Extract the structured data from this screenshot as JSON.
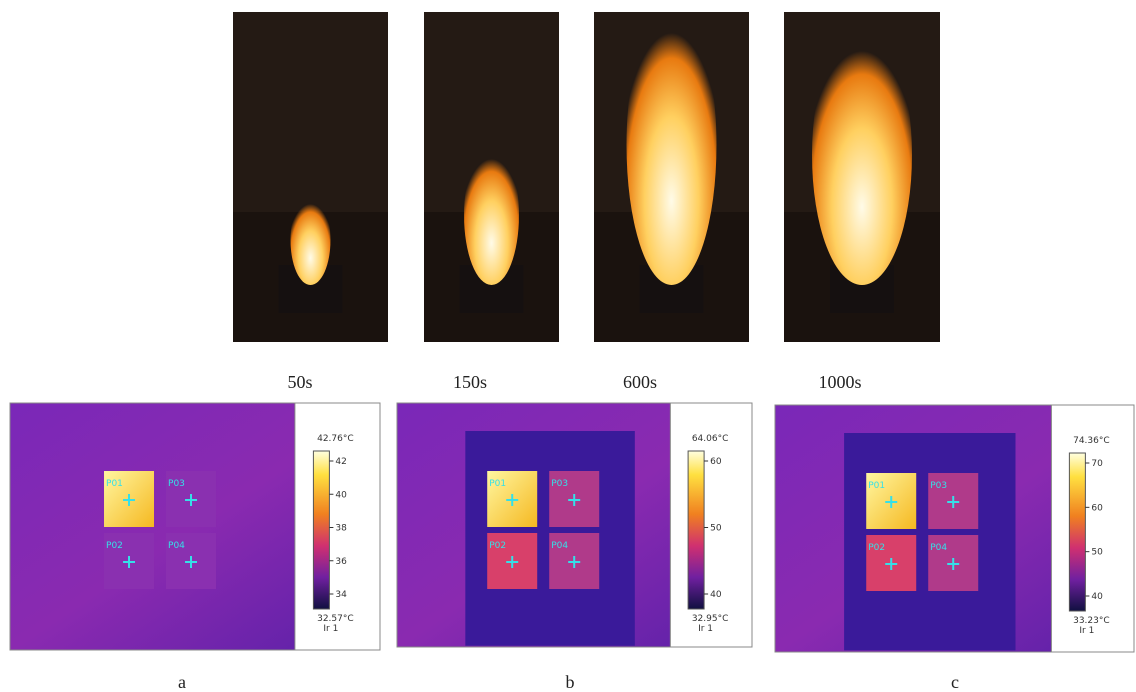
{
  "photos": [
    {
      "time": "50s"
    },
    {
      "time": "150s"
    },
    {
      "time": "600s"
    },
    {
      "time": "1000s"
    }
  ],
  "thermal": [
    {
      "label": "a",
      "max": "42.76°C",
      "min": "32.57°C",
      "ticks": [
        "42",
        "40",
        "38",
        "36",
        "34"
      ],
      "layer": "Ir 1",
      "points": [
        "P01",
        "P03",
        "P02",
        "P04"
      ]
    },
    {
      "label": "b",
      "max": "64.06°C",
      "min": "32.95°C",
      "ticks": [
        "60",
        "50",
        "40"
      ],
      "layer": "Ir 1",
      "points": [
        "P01",
        "P03",
        "P02",
        "P04"
      ]
    },
    {
      "label": "c",
      "max": "74.36°C",
      "min": "33.23°C",
      "ticks": [
        "70",
        "60",
        "50",
        "40"
      ],
      "layer": "Ir 1",
      "points": [
        "P01",
        "P03",
        "P02",
        "P04"
      ]
    }
  ]
}
